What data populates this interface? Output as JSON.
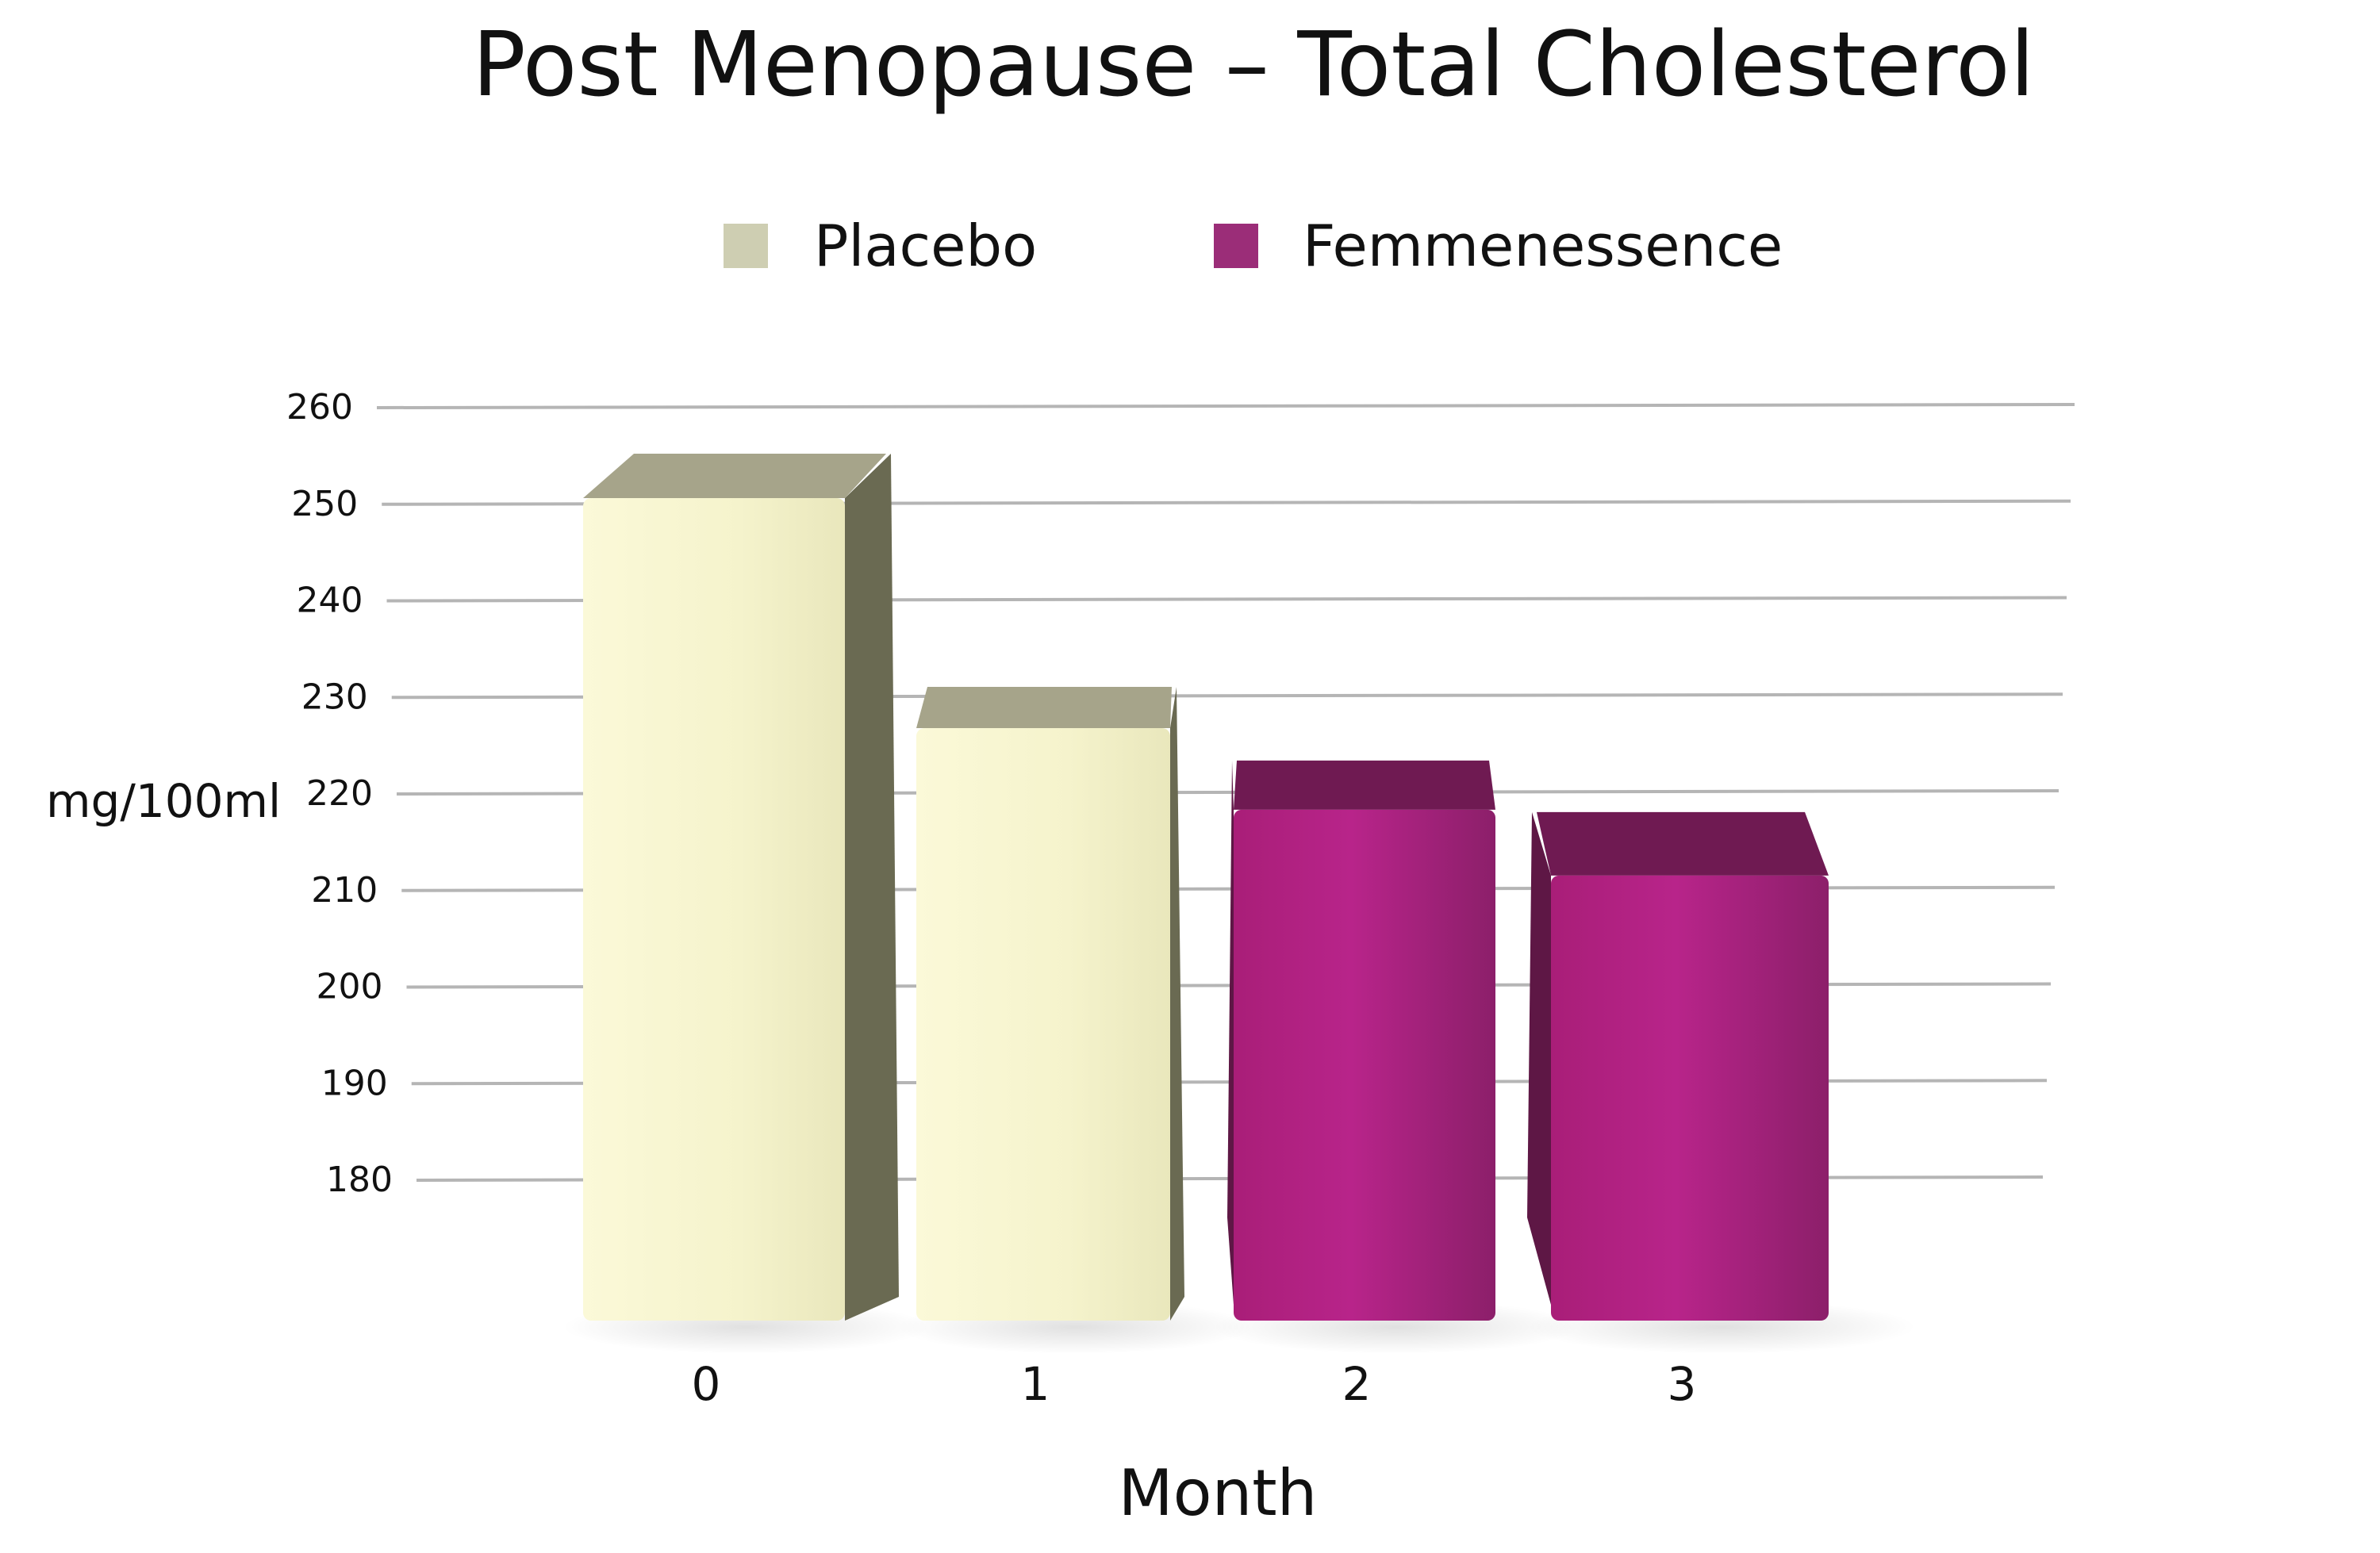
{
  "chart_data": {
    "type": "bar",
    "title": "Post Menopause – Total Cholesterol",
    "xlabel": "Month",
    "ylabel": "mg/100ml",
    "categories": [
      "0",
      "1",
      "2",
      "3"
    ],
    "values": [
      253,
      229,
      221,
      215
    ],
    "bar_series": [
      "Placebo",
      "Placebo",
      "Femmenessence",
      "Femmenessence"
    ],
    "legend": [
      {
        "name": "Placebo",
        "color": "#ceceb2"
      },
      {
        "name": "Femmenessence",
        "color": "#9b2d78"
      }
    ],
    "legend_position": "top-center",
    "yticks": [
      "260",
      "250",
      "240",
      "230",
      "220",
      "210",
      "200",
      "190",
      "180"
    ],
    "ylim": [
      180,
      260
    ],
    "grid": true,
    "style": "3d-bars",
    "colors": {
      "placebo_front": "#f5f3cc",
      "placebo_side": "#6a6a52",
      "placebo_top": "#a6a48a",
      "femme_front": "#b2227f",
      "femme_side": "#5e1745",
      "femme_top": "#6f1a52",
      "grid": "#b5b5b5"
    }
  }
}
